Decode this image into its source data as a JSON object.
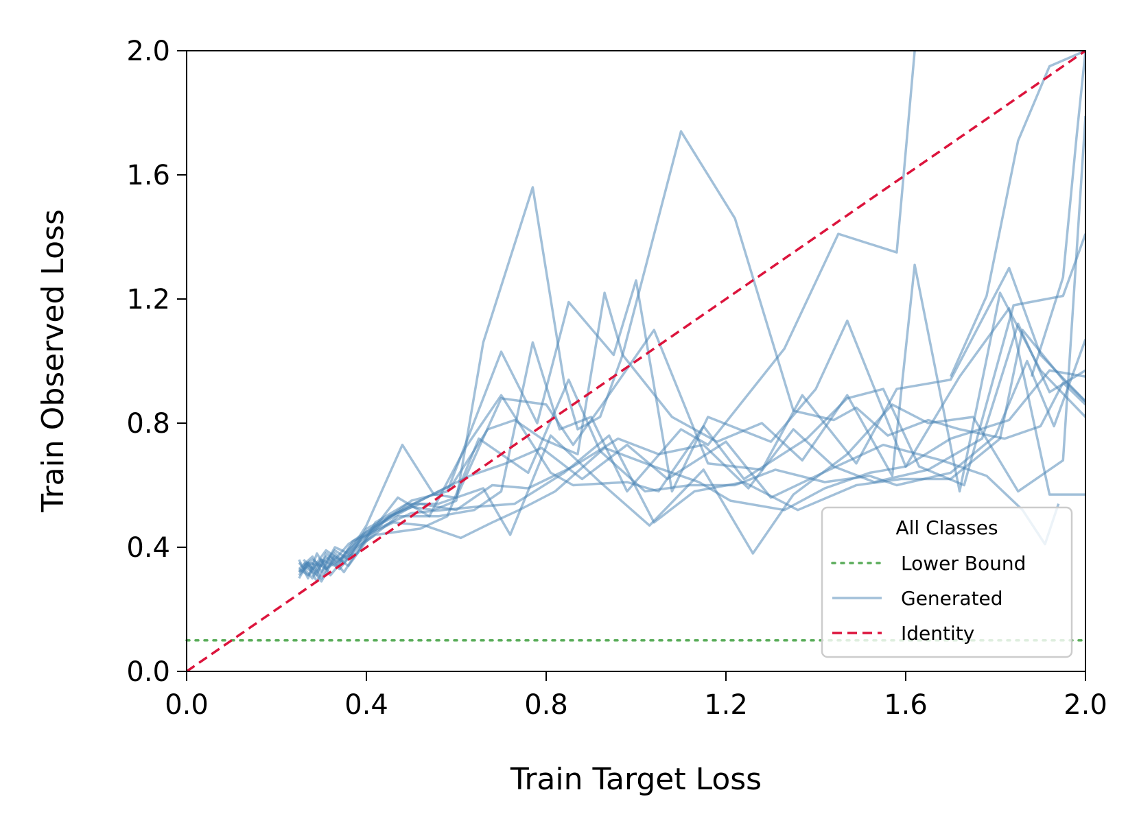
{
  "chart_data": {
    "type": "line",
    "xlabel": "Train Target Loss",
    "ylabel": "Train Observed Loss",
    "xlim": [
      0,
      2.0
    ],
    "ylim": [
      0,
      2.0
    ],
    "xticks": [
      "0.0",
      "0.4",
      "0.8",
      "1.2",
      "1.6",
      "2.0"
    ],
    "yticks": [
      "0.0",
      "0.4",
      "0.8",
      "1.2",
      "1.6",
      "2.0"
    ],
    "grid": false,
    "legend": {
      "title": "All Classes",
      "placement": "lower-right",
      "entries": [
        "Lower Bound",
        "Generated",
        "Identity"
      ]
    },
    "colors": {
      "lower_bound": "#5aac5a",
      "generated": "#4682b4",
      "identity": "#dc143c"
    },
    "lower_bound_y": 0.1,
    "identity": [
      [
        0,
        0
      ],
      [
        2.0,
        2.0
      ]
    ],
    "generated_series": [
      [
        [
          0.25,
          0.36
        ],
        [
          0.27,
          0.3
        ],
        [
          0.29,
          0.38
        ],
        [
          0.31,
          0.33
        ],
        [
          0.33,
          0.36
        ],
        [
          0.36,
          0.41
        ],
        [
          0.4,
          0.45
        ],
        [
          0.45,
          0.49
        ],
        [
          0.5,
          0.53
        ],
        [
          0.55,
          0.52
        ],
        [
          0.6,
          0.55
        ],
        [
          0.66,
          1.06
        ],
        [
          0.77,
          1.56
        ],
        [
          0.84,
          0.93
        ],
        [
          0.87,
          0.78
        ],
        [
          0.92,
          0.82
        ],
        [
          0.97,
          1.02
        ],
        [
          1.1,
          1.74
        ],
        [
          1.22,
          1.46
        ],
        [
          1.35,
          0.84
        ],
        [
          1.44,
          0.81
        ],
        [
          1.49,
          0.85
        ],
        [
          1.56,
          0.76
        ],
        [
          1.65,
          0.81
        ],
        [
          1.72,
          0.78
        ],
        [
          1.82,
          0.75
        ],
        [
          1.9,
          0.79
        ],
        [
          1.95,
          0.93
        ],
        [
          2.0,
          0.86
        ]
      ],
      [
        [
          0.25,
          0.33
        ],
        [
          0.28,
          0.37
        ],
        [
          0.3,
          0.32
        ],
        [
          0.33,
          0.4
        ],
        [
          0.36,
          0.38
        ],
        [
          0.4,
          0.47
        ],
        [
          0.48,
          0.73
        ],
        [
          0.55,
          0.57
        ],
        [
          0.6,
          0.56
        ],
        [
          0.7,
          0.88
        ],
        [
          0.8,
          0.86
        ],
        [
          0.86,
          0.73
        ],
        [
          0.92,
          0.85
        ],
        [
          1.04,
          1.1
        ],
        [
          1.16,
          0.67
        ],
        [
          1.28,
          0.65
        ],
        [
          1.37,
          0.89
        ],
        [
          1.49,
          0.67
        ],
        [
          1.58,
          0.91
        ],
        [
          1.7,
          0.94
        ],
        [
          1.83,
          1.3
        ],
        [
          1.9,
          1.02
        ],
        [
          2.0,
          0.87
        ]
      ],
      [
        [
          0.26,
          0.34
        ],
        [
          0.29,
          0.31
        ],
        [
          0.31,
          0.38
        ],
        [
          0.34,
          0.35
        ],
        [
          0.37,
          0.42
        ],
        [
          0.4,
          0.44
        ],
        [
          0.5,
          0.55
        ],
        [
          0.58,
          0.58
        ],
        [
          0.7,
          1.03
        ],
        [
          0.78,
          0.8
        ],
        [
          0.85,
          1.19
        ],
        [
          0.95,
          1.02
        ],
        [
          1.0,
          1.26
        ],
        [
          1.08,
          0.58
        ],
        [
          1.16,
          0.82
        ],
        [
          1.3,
          0.74
        ],
        [
          1.4,
          0.91
        ],
        [
          1.47,
          1.13
        ],
        [
          1.6,
          0.66
        ],
        [
          1.72,
          0.95
        ],
        [
          1.83,
          1.17
        ],
        [
          1.92,
          0.57
        ],
        [
          2.0,
          0.57
        ]
      ],
      [
        [
          0.25,
          0.3
        ],
        [
          0.27,
          0.35
        ],
        [
          0.3,
          0.29
        ],
        [
          0.33,
          0.37
        ],
        [
          0.36,
          0.34
        ],
        [
          0.4,
          0.42
        ],
        [
          0.47,
          0.5
        ],
        [
          0.56,
          0.5
        ],
        [
          0.64,
          0.52
        ],
        [
          0.7,
          0.58
        ],
        [
          0.77,
          1.06
        ],
        [
          0.83,
          0.78
        ],
        [
          0.9,
          0.82
        ],
        [
          0.98,
          0.58
        ],
        [
          1.1,
          0.78
        ],
        [
          1.16,
          0.73
        ],
        [
          1.33,
          1.04
        ],
        [
          1.45,
          1.41
        ],
        [
          1.58,
          1.35
        ],
        [
          1.62,
          2.0
        ]
      ],
      [
        [
          0.26,
          0.35
        ],
        [
          0.28,
          0.33
        ],
        [
          0.31,
          0.39
        ],
        [
          0.34,
          0.36
        ],
        [
          0.37,
          0.41
        ],
        [
          0.41,
          0.46
        ],
        [
          0.49,
          0.53
        ],
        [
          0.59,
          0.6
        ],
        [
          0.67,
          0.78
        ],
        [
          0.73,
          0.81
        ],
        [
          0.79,
          0.75
        ],
        [
          0.87,
          0.7
        ],
        [
          0.93,
          1.22
        ],
        [
          0.97,
          1.02
        ],
        [
          1.08,
          0.82
        ],
        [
          1.18,
          0.74
        ],
        [
          1.28,
          0.8
        ],
        [
          1.37,
          0.68
        ],
        [
          1.47,
          0.89
        ],
        [
          1.57,
          0.63
        ],
        [
          1.62,
          1.31
        ],
        [
          1.72,
          0.58
        ],
        [
          1.81,
          1.22
        ],
        [
          1.9,
          0.97
        ],
        [
          2.0,
          0.82
        ]
      ],
      [
        [
          0.25,
          0.32
        ],
        [
          0.28,
          0.35
        ],
        [
          0.3,
          0.3
        ],
        [
          0.33,
          0.38
        ],
        [
          0.35,
          0.35
        ],
        [
          0.39,
          0.43
        ],
        [
          0.46,
          0.48
        ],
        [
          0.53,
          0.47
        ],
        [
          0.61,
          0.43
        ],
        [
          0.68,
          0.48
        ],
        [
          0.74,
          0.52
        ],
        [
          0.82,
          0.58
        ],
        [
          0.93,
          0.72
        ],
        [
          1.04,
          0.66
        ],
        [
          1.14,
          0.61
        ],
        [
          1.21,
          0.55
        ],
        [
          1.33,
          0.52
        ],
        [
          1.42,
          0.59
        ],
        [
          1.52,
          0.64
        ],
        [
          1.6,
          0.66
        ],
        [
          1.7,
          0.75
        ],
        [
          1.83,
          0.81
        ],
        [
          1.92,
          0.97
        ],
        [
          2.0,
          0.95
        ]
      ],
      [
        [
          0.26,
          0.36
        ],
        [
          0.29,
          0.32
        ],
        [
          0.31,
          0.37
        ],
        [
          0.34,
          0.33
        ],
        [
          0.38,
          0.4
        ],
        [
          0.42,
          0.44
        ],
        [
          0.52,
          0.46
        ],
        [
          0.58,
          0.5
        ],
        [
          0.65,
          0.75
        ],
        [
          0.76,
          0.64
        ],
        [
          0.85,
          0.94
        ],
        [
          0.92,
          0.71
        ],
        [
          1.02,
          0.58
        ],
        [
          1.12,
          0.6
        ],
        [
          1.22,
          0.6
        ],
        [
          1.31,
          0.65
        ],
        [
          1.42,
          0.61
        ],
        [
          1.52,
          0.63
        ],
        [
          1.58,
          0.6
        ],
        [
          1.7,
          0.64
        ],
        [
          1.8,
          0.76
        ],
        [
          1.87,
          1.0
        ],
        [
          1.93,
          0.79
        ],
        [
          2.0,
          1.07
        ]
      ],
      [
        [
          0.25,
          0.33
        ],
        [
          0.27,
          0.31
        ],
        [
          0.3,
          0.36
        ],
        [
          0.33,
          0.34
        ],
        [
          0.36,
          0.39
        ],
        [
          0.41,
          0.45
        ],
        [
          0.5,
          0.51
        ],
        [
          0.57,
          0.52
        ],
        [
          0.64,
          0.53
        ],
        [
          0.73,
          0.54
        ],
        [
          0.84,
          0.64
        ],
        [
          0.94,
          0.76
        ],
        [
          1.04,
          0.48
        ],
        [
          1.13,
          0.58
        ],
        [
          1.24,
          0.61
        ],
        [
          1.36,
          0.52
        ],
        [
          1.49,
          0.6
        ],
        [
          1.59,
          0.62
        ],
        [
          1.7,
          0.62
        ],
        [
          1.81,
          0.75
        ],
        [
          1.86,
          1.1
        ],
        [
          1.95,
          0.94
        ],
        [
          2.0,
          0.87
        ]
      ],
      [
        [
          0.26,
          0.34
        ],
        [
          0.28,
          0.36
        ],
        [
          0.31,
          0.33
        ],
        [
          0.35,
          0.37
        ],
        [
          0.38,
          0.38
        ],
        [
          0.42,
          0.48
        ],
        [
          0.49,
          0.54
        ],
        [
          0.56,
          0.54
        ],
        [
          0.66,
          0.59
        ],
        [
          0.72,
          0.44
        ],
        [
          0.81,
          0.76
        ],
        [
          0.92,
          0.61
        ],
        [
          1.03,
          0.47
        ],
        [
          1.15,
          0.65
        ],
        [
          1.26,
          0.38
        ],
        [
          1.35,
          0.57
        ],
        [
          1.47,
          0.7
        ],
        [
          1.57,
          0.86
        ],
        [
          1.65,
          0.8
        ],
        [
          1.75,
          0.82
        ],
        [
          1.85,
          0.58
        ],
        [
          1.95,
          0.68
        ],
        [
          2.0,
          1.79
        ]
      ],
      [
        [
          0.25,
          0.35
        ],
        [
          0.28,
          0.3
        ],
        [
          0.3,
          0.36
        ],
        [
          0.32,
          0.31
        ],
        [
          0.36,
          0.38
        ],
        [
          0.4,
          0.43
        ],
        [
          0.47,
          0.56
        ],
        [
          0.54,
          0.5
        ],
        [
          0.62,
          0.72
        ],
        [
          0.7,
          0.89
        ],
        [
          0.81,
          0.64
        ],
        [
          0.86,
          0.6
        ],
        [
          0.98,
          0.61
        ],
        [
          1.05,
          0.58
        ],
        [
          1.15,
          0.79
        ],
        [
          1.24,
          0.62
        ],
        [
          1.38,
          0.75
        ],
        [
          1.47,
          0.88
        ],
        [
          1.55,
          0.91
        ],
        [
          1.63,
          0.66
        ],
        [
          1.73,
          0.6
        ],
        [
          1.84,
          1.18
        ],
        [
          1.95,
          1.21
        ],
        [
          2.0,
          1.41
        ]
      ],
      [
        [
          0.25,
          0.31
        ],
        [
          0.27,
          0.34
        ],
        [
          0.29,
          0.29
        ],
        [
          0.32,
          0.37
        ],
        [
          0.35,
          0.32
        ],
        [
          0.39,
          0.41
        ],
        [
          0.45,
          0.5
        ],
        [
          0.52,
          0.54
        ],
        [
          0.6,
          0.52
        ],
        [
          0.68,
          0.6
        ],
        [
          0.76,
          0.59
        ],
        [
          0.86,
          0.66
        ],
        [
          0.96,
          0.75
        ],
        [
          1.05,
          0.7
        ],
        [
          1.15,
          0.73
        ],
        [
          1.25,
          0.59
        ],
        [
          1.35,
          0.78
        ],
        [
          1.44,
          0.66
        ],
        [
          1.53,
          0.61
        ],
        [
          1.65,
          0.65
        ],
        [
          1.77,
          0.75
        ],
        [
          1.85,
          1.12
        ],
        [
          1.92,
          0.9
        ],
        [
          2.0,
          0.97
        ]
      ],
      [
        [
          0.25,
          0.32
        ],
        [
          0.27,
          0.35
        ],
        [
          0.3,
          0.34
        ],
        [
          0.33,
          0.39
        ],
        [
          0.36,
          0.36
        ],
        [
          0.4,
          0.46
        ],
        [
          0.48,
          0.52
        ],
        [
          0.56,
          0.58
        ],
        [
          0.63,
          0.63
        ],
        [
          0.71,
          0.67
        ],
        [
          0.79,
          0.72
        ],
        [
          0.88,
          0.62
        ],
        [
          0.98,
          0.73
        ],
        [
          1.07,
          0.62
        ],
        [
          1.2,
          0.74
        ],
        [
          1.3,
          0.56
        ],
        [
          1.43,
          0.65
        ],
        [
          1.55,
          0.73
        ],
        [
          1.68,
          0.68
        ],
        [
          1.78,
          0.63
        ],
        [
          1.86,
          0.52
        ],
        [
          1.91,
          0.41
        ],
        [
          1.94,
          0.54
        ]
      ],
      [
        [
          1.7,
          0.95
        ],
        [
          1.78,
          1.21
        ],
        [
          1.85,
          1.71
        ],
        [
          1.92,
          1.95
        ],
        [
          2.0,
          2.0
        ]
      ],
      [
        [
          1.88,
          0.95
        ],
        [
          1.95,
          1.27
        ],
        [
          1.98,
          1.72
        ],
        [
          2.0,
          2.0
        ]
      ],
      [
        [
          1.62,
          2.0
        ],
        [
          1.68,
          2.1
        ],
        [
          1.72,
          2.1
        ],
        [
          1.76,
          2.0
        ]
      ]
    ]
  }
}
